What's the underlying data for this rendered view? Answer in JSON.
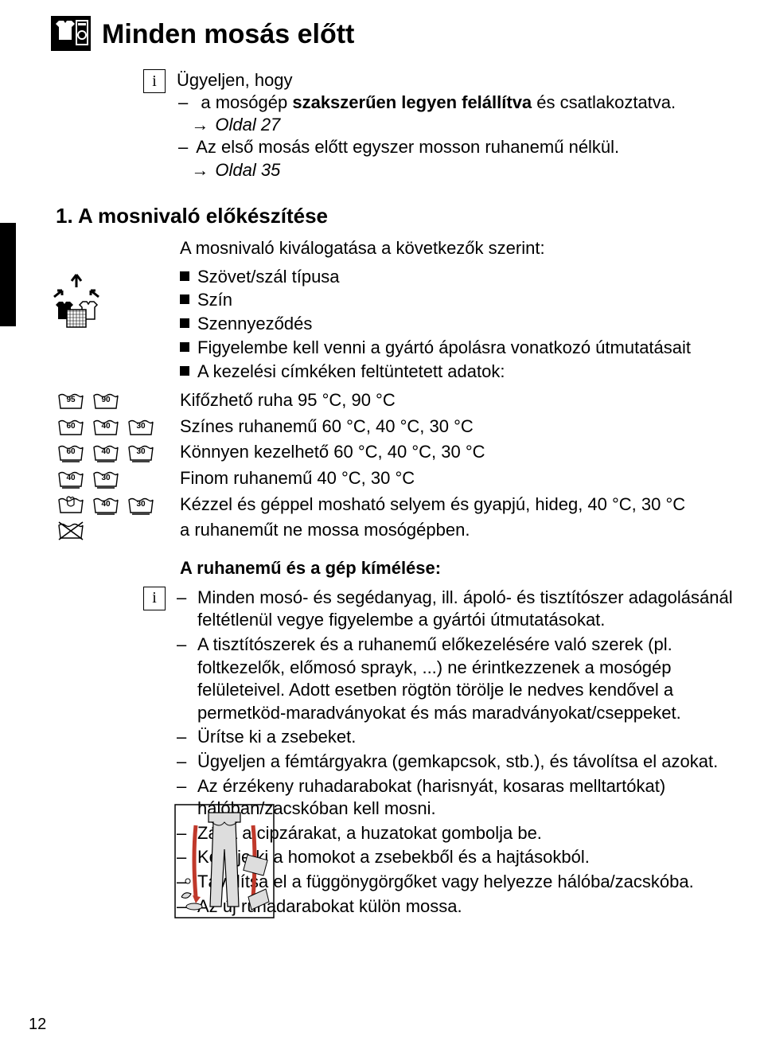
{
  "title": "Minden mosás előtt",
  "info1": {
    "lead": "Ügyeljen, hogy",
    "line1_pre": "a mosógép",
    "line1_bold": " szakszerűen legyen felállítva",
    "line1_post": " és csatlakoztatva.",
    "ref1": "Oldal 27",
    "line2": "Az első mosás előtt egyszer mosson ruhanemű nélkül.",
    "ref2": "Oldal 35"
  },
  "h2": "1. A mosnivaló előkészítése",
  "subhead": "A mosnivaló kiválogatása a következők szerint:",
  "sortItems": [
    "Szövet/szál típusa",
    "Szín",
    "Szennyeződés",
    "Figyelembe kell venni a gyártó ápolásra vonatkozó útmutatásait",
    "A kezelési címkéken feltüntetett adatok:"
  ],
  "symRows": [
    {
      "temps": [
        "95",
        "90"
      ],
      "style": "plain",
      "text": "Kifőzhető ruha 95 °C, 90 °C"
    },
    {
      "temps": [
        "60",
        "40",
        "30"
      ],
      "style": "plain",
      "text": "Színes ruhanemű 60 °C, 40 °C, 30 °C"
    },
    {
      "temps": [
        "60",
        "40",
        "30"
      ],
      "style": "bar",
      "text": "Könnyen kezelhető 60 °C, 40 °C, 30 °C"
    },
    {
      "temps": [
        "40",
        "30"
      ],
      "style": "bar",
      "text": "Finom ruhanemű 40 °C, 30 °C"
    },
    {
      "temps": [
        "hand",
        "40",
        "30"
      ],
      "style": "bar",
      "text": "Kézzel és géppel mosható selyem és gyapjú, hideg, 40 °C, 30 °C"
    },
    {
      "temps": [
        "nowash"
      ],
      "style": "plain",
      "text": "a ruhaneműt ne mossa mosógépben."
    }
  ],
  "h3": "A ruhanemű és a gép kímélése:",
  "careItems": [
    "Minden mosó- és segédanyag, ill. ápoló- és tisztítószer adagolásánál feltétlenül vegye figyelembe a gyártói útmutatásokat.",
    "A tisztítószerek és a ruhanemű előkezelésére való szerek (pl. foltkezelők, előmosó sprayk, ...) ne érintkezzenek a mosógép felületeivel. Adott esetben rögtön törölje le nedves kendővel a permetköd-maradványokat és más maradványokat/cseppeket.",
    "Ürítse ki a zsebeket.",
    "Ügyeljen a fémtárgyakra (gemkapcsok, stb.), és távolítsa el azokat.",
    "Az érzékeny ruhadarabokat (harisnyát, kosaras melltartókat) hálóban/zacskóban kell mosni.",
    "Zárja a cipzárakat, a huzatokat gombolja be.",
    "Kefélje ki a homokot a zsebekből és a hajtásokból.",
    "Távolítsa el a függönygörgőket vagy helyezze hálóba/zacskóba.",
    "Az új ruhadarabokat külön mossa."
  ],
  "pageNumber": "12",
  "colors": {
    "accent": "#000000",
    "bg": "#ffffff",
    "red": "#c0392b",
    "gray": "#888"
  }
}
